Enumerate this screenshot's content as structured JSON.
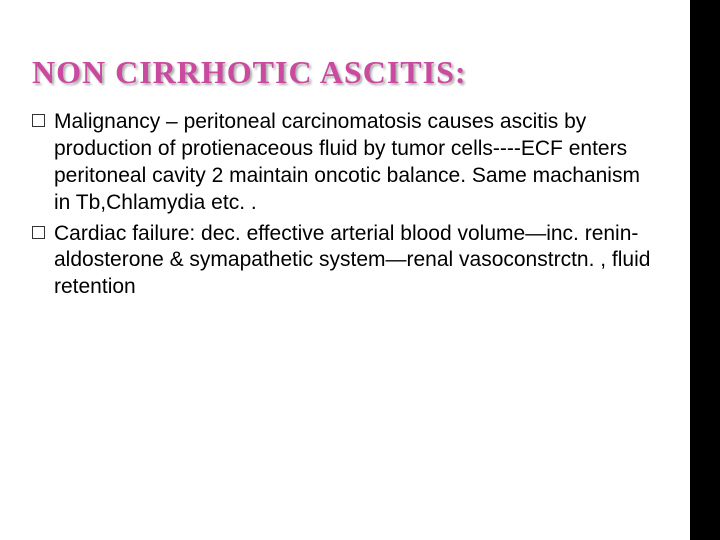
{
  "slide": {
    "title": "NON CIRRHOTIC ASCITIS:",
    "title_color": "#c94a9e",
    "title_fontsize": 32,
    "background_color": "#ffffff",
    "side_strip_color": "#000000",
    "body_fontsize": 21,
    "body_color": "#000000",
    "bullets": [
      "Malignancy – peritoneal carcinomatosis causes ascitis by production of protienaceous fluid by tumor cells----ECF enters peritoneal cavity 2 maintain oncotic balance. Same machanism in Tb,Chlamydia etc. .",
      "Cardiac failure: dec. effective arterial blood volume—inc. renin-aldosterone & symapathetic system—renal vasoconstrctn. , fluid retention"
    ]
  }
}
